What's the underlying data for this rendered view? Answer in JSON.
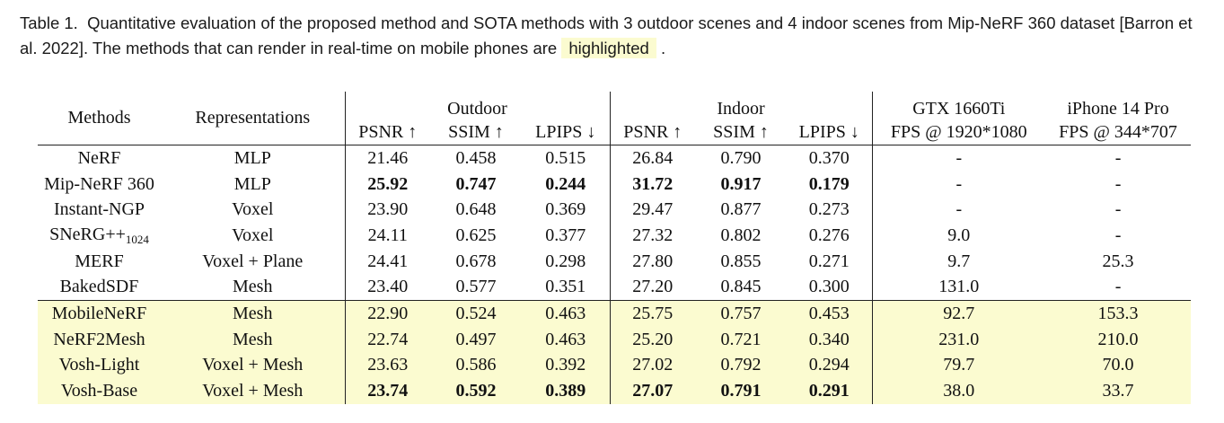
{
  "caption": {
    "label": "Table 1.",
    "text": "Quantitative evaluation of the proposed method and SOTA methods with 3 outdoor scenes and 4 indoor scenes from Mip-NeRF 360 dataset [Barron et al. 2022]. The methods that can render in real-time on mobile phones are",
    "highlight": "highlighted",
    "end": "."
  },
  "header": {
    "methods": "Methods",
    "representations": "Representations",
    "outdoor": "Outdoor",
    "indoor": "Indoor",
    "gtx": "GTX 1660Ti",
    "gtx_sub": "FPS @ 1920*1080",
    "iphone": "iPhone 14 Pro",
    "iphone_sub": "FPS @ 344*707",
    "psnr": "PSNR ↑",
    "ssim": "SSIM ↑",
    "lpips": "LPIPS ↓"
  },
  "rows": [
    {
      "method": "NeRF",
      "rep": "MLP",
      "o_psnr": "21.46",
      "o_ssim": "0.458",
      "o_lpips": "0.515",
      "i_psnr": "26.84",
      "i_ssim": "0.790",
      "i_lpips": "0.370",
      "gtx": "-",
      "iphone": "-"
    },
    {
      "method": "Mip-NeRF 360",
      "rep": "MLP",
      "o_psnr": "25.92",
      "o_ssim": "0.747",
      "o_lpips": "0.244",
      "i_psnr": "31.72",
      "i_ssim": "0.917",
      "i_lpips": "0.179",
      "gtx": "-",
      "iphone": "-"
    },
    {
      "method": "Instant-NGP",
      "rep": "Voxel",
      "o_psnr": "23.90",
      "o_ssim": "0.648",
      "o_lpips": "0.369",
      "i_psnr": "29.47",
      "i_ssim": "0.877",
      "i_lpips": "0.273",
      "gtx": "-",
      "iphone": "-"
    },
    {
      "method": "SNeRG++",
      "method_sub": "1024",
      "rep": "Voxel",
      "o_psnr": "24.11",
      "o_ssim": "0.625",
      "o_lpips": "0.377",
      "i_psnr": "27.32",
      "i_ssim": "0.802",
      "i_lpips": "0.276",
      "gtx": "9.0",
      "iphone": "-"
    },
    {
      "method": "MERF",
      "rep": "Voxel + Plane",
      "o_psnr": "24.41",
      "o_ssim": "0.678",
      "o_lpips": "0.298",
      "i_psnr": "27.80",
      "i_ssim": "0.855",
      "i_lpips": "0.271",
      "gtx": "9.7",
      "iphone": "25.3"
    },
    {
      "method": "BakedSDF",
      "rep": "Mesh",
      "o_psnr": "23.40",
      "o_ssim": "0.577",
      "o_lpips": "0.351",
      "i_psnr": "27.20",
      "i_ssim": "0.845",
      "i_lpips": "0.300",
      "gtx": "131.0",
      "iphone": "-"
    },
    {
      "method": "MobileNeRF",
      "rep": "Mesh",
      "o_psnr": "22.90",
      "o_ssim": "0.524",
      "o_lpips": "0.463",
      "i_psnr": "25.75",
      "i_ssim": "0.757",
      "i_lpips": "0.453",
      "gtx": "92.7",
      "iphone": "153.3"
    },
    {
      "method": "NeRF2Mesh",
      "rep": "Mesh",
      "o_psnr": "22.74",
      "o_ssim": "0.497",
      "o_lpips": "0.463",
      "i_psnr": "25.20",
      "i_ssim": "0.721",
      "i_lpips": "0.340",
      "gtx": "231.0",
      "iphone": "210.0"
    },
    {
      "method": "Vosh-Light",
      "rep": "Voxel + Mesh",
      "o_psnr": "23.63",
      "o_ssim": "0.586",
      "o_lpips": "0.392",
      "i_psnr": "27.02",
      "i_ssim": "0.792",
      "i_lpips": "0.294",
      "gtx": "79.7",
      "iphone": "70.0"
    },
    {
      "method": "Vosh-Base",
      "rep": "Voxel + Mesh",
      "o_psnr": "23.74",
      "o_ssim": "0.592",
      "o_lpips": "0.389",
      "i_psnr": "27.07",
      "i_ssim": "0.791",
      "i_lpips": "0.291",
      "gtx": "38.0",
      "iphone": "33.7"
    }
  ]
}
